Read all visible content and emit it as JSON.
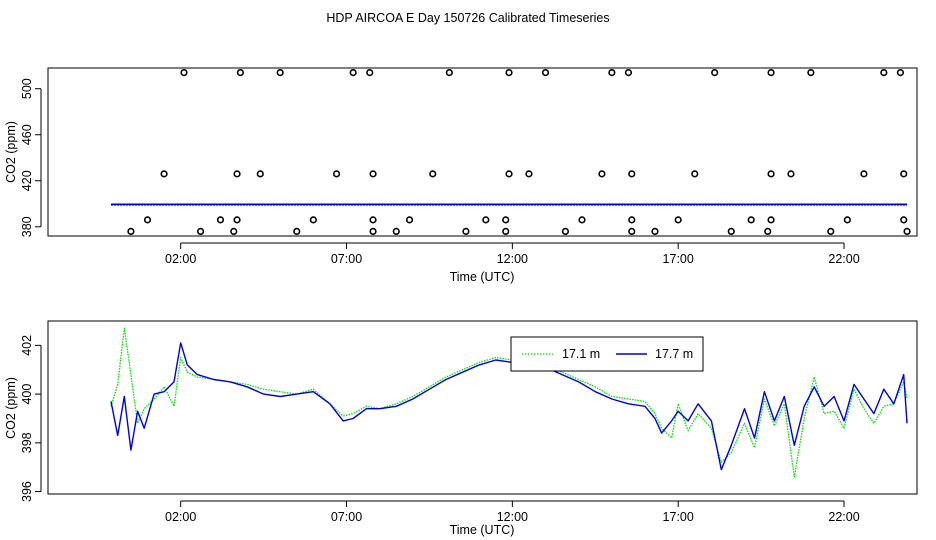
{
  "title": "HDP AIRCOA E  Day 150726  Calibrated Timeseries",
  "colors": {
    "series_17_1": "#00dd00",
    "series_17_7": "#0000dd",
    "qc_points": "#000000"
  },
  "chart_data": [
    {
      "type": "scatter",
      "xlabel": "Time (UTC)",
      "ylabel": "CO2 (ppm)",
      "xlim": [
        -2,
        24.2
      ],
      "ylim": [
        372,
        518
      ],
      "x_ticks": [
        2,
        7,
        12,
        17,
        22
      ],
      "x_tick_labels": [
        "02:00",
        "07:00",
        "12:00",
        "17:00",
        "22:00"
      ],
      "y_ticks": [
        380,
        420,
        460,
        500
      ],
      "y_tick_labels": [
        "380",
        "420",
        "460",
        "500"
      ],
      "grid": false,
      "legend": "none",
      "series": [
        {
          "values_co2_ppm": "approx 399.5 at all times (both heights overlaid near the bottom)"
        }
      ],
      "line_x_range": [
        -0.1,
        23.9
      ],
      "line_y": 399.5,
      "qc_points": [
        [
          2.1,
          514
        ],
        [
          3.8,
          514
        ],
        [
          5.0,
          514
        ],
        [
          7.2,
          514
        ],
        [
          7.7,
          514
        ],
        [
          10.1,
          514
        ],
        [
          11.9,
          514
        ],
        [
          13.0,
          514
        ],
        [
          15.0,
          514
        ],
        [
          15.5,
          514
        ],
        [
          18.1,
          514
        ],
        [
          19.8,
          514
        ],
        [
          21.0,
          514
        ],
        [
          23.2,
          514
        ],
        [
          23.7,
          514
        ],
        [
          1.5,
          426
        ],
        [
          3.7,
          426
        ],
        [
          4.4,
          426
        ],
        [
          6.7,
          426
        ],
        [
          7.8,
          426
        ],
        [
          9.6,
          426
        ],
        [
          11.9,
          426
        ],
        [
          12.5,
          426
        ],
        [
          14.7,
          426
        ],
        [
          15.6,
          426
        ],
        [
          17.5,
          426
        ],
        [
          19.8,
          426
        ],
        [
          20.4,
          426
        ],
        [
          22.6,
          426
        ],
        [
          23.8,
          426
        ],
        [
          1.0,
          386
        ],
        [
          3.2,
          386
        ],
        [
          3.7,
          386
        ],
        [
          6.0,
          386
        ],
        [
          7.8,
          386
        ],
        [
          8.9,
          386
        ],
        [
          11.2,
          386
        ],
        [
          11.8,
          386
        ],
        [
          14.1,
          386
        ],
        [
          15.6,
          386
        ],
        [
          17.0,
          386
        ],
        [
          19.2,
          386
        ],
        [
          19.8,
          386
        ],
        [
          22.1,
          386
        ],
        [
          23.8,
          386
        ],
        [
          0.5,
          376
        ],
        [
          2.6,
          376
        ],
        [
          3.6,
          376
        ],
        [
          5.5,
          376
        ],
        [
          7.8,
          376
        ],
        [
          8.5,
          376
        ],
        [
          10.6,
          376
        ],
        [
          11.8,
          376
        ],
        [
          13.6,
          376
        ],
        [
          15.6,
          376
        ],
        [
          16.3,
          376
        ],
        [
          18.6,
          376
        ],
        [
          19.7,
          376
        ],
        [
          21.6,
          376
        ],
        [
          23.9,
          376
        ]
      ]
    },
    {
      "type": "line",
      "xlabel": "Time (UTC)",
      "ylabel": "CO2 (ppm)",
      "xlim": [
        -2,
        24.2
      ],
      "ylim": [
        395.9,
        403.0
      ],
      "x_ticks": [
        2,
        7,
        12,
        17,
        22
      ],
      "x_tick_labels": [
        "02:00",
        "07:00",
        "12:00",
        "17:00",
        "22:00"
      ],
      "y_ticks": [
        396,
        398,
        400,
        402
      ],
      "y_tick_labels": [
        "396",
        "398",
        "400",
        "402"
      ],
      "grid": false,
      "legend": "top-right",
      "series": [
        {
          "name": "17.1 m",
          "color": "#00dd00",
          "dash": "dotted",
          "x": [
            -0.1,
            0.1,
            0.3,
            0.5,
            0.7,
            0.9,
            1.2,
            1.5,
            1.8,
            2.0,
            2.2,
            2.5,
            3.0,
            3.5,
            4.0,
            4.5,
            5.0,
            5.5,
            6.0,
            6.5,
            6.9,
            7.2,
            7.6,
            8.0,
            8.5,
            9.0,
            9.5,
            10.0,
            10.5,
            11.0,
            11.5,
            12.0,
            12.5,
            13.0,
            13.5,
            14.0,
            14.5,
            15.0,
            15.5,
            16.0,
            16.3,
            16.5,
            16.8,
            17.0,
            17.3,
            17.6,
            18.0,
            18.3,
            18.6,
            19.0,
            19.3,
            19.6,
            19.9,
            20.2,
            20.5,
            20.8,
            21.1,
            21.4,
            21.7,
            22.0,
            22.3,
            22.6,
            22.9,
            23.2,
            23.5,
            23.8,
            23.9
          ],
          "values": [
            399.5,
            400.4,
            402.7,
            400.8,
            398.8,
            399.4,
            399.8,
            400.3,
            399.5,
            401.5,
            400.9,
            400.7,
            400.6,
            400.5,
            400.4,
            400.2,
            400.1,
            400.0,
            400.2,
            399.6,
            399.1,
            399.2,
            399.5,
            399.4,
            399.6,
            399.9,
            400.3,
            400.7,
            401.0,
            401.3,
            401.5,
            401.4,
            401.3,
            401.2,
            400.9,
            400.6,
            400.3,
            399.9,
            399.8,
            399.7,
            399.2,
            398.6,
            398.2,
            399.6,
            398.5,
            399.2,
            398.6,
            397.2,
            397.6,
            398.8,
            397.8,
            399.8,
            398.7,
            399.6,
            396.6,
            399.0,
            400.7,
            399.2,
            399.3,
            398.6,
            400.2,
            399.4,
            398.8,
            399.5,
            399.6,
            400.5,
            399.8
          ]
        },
        {
          "name": "17.7 m",
          "color": "#0000dd",
          "dash": "solid",
          "x": [
            -0.1,
            0.1,
            0.3,
            0.5,
            0.7,
            0.9,
            1.2,
            1.5,
            1.8,
            2.0,
            2.2,
            2.5,
            3.0,
            3.5,
            4.0,
            4.5,
            5.0,
            5.5,
            6.0,
            6.5,
            6.9,
            7.2,
            7.6,
            8.0,
            8.5,
            9.0,
            9.5,
            10.0,
            10.5,
            11.0,
            11.5,
            12.0,
            12.5,
            13.0,
            13.5,
            14.0,
            14.5,
            15.0,
            15.5,
            16.0,
            16.3,
            16.5,
            16.8,
            17.0,
            17.3,
            17.6,
            18.0,
            18.3,
            18.6,
            19.0,
            19.3,
            19.6,
            19.9,
            20.2,
            20.5,
            20.8,
            21.1,
            21.4,
            21.7,
            22.0,
            22.3,
            22.6,
            22.9,
            23.2,
            23.5,
            23.8,
            23.9
          ],
          "values": [
            399.7,
            398.3,
            399.9,
            397.7,
            399.3,
            398.6,
            400.0,
            400.1,
            400.5,
            402.1,
            401.2,
            400.8,
            400.6,
            400.5,
            400.3,
            400.0,
            399.9,
            400.0,
            400.1,
            399.6,
            398.9,
            399.0,
            399.4,
            399.4,
            399.5,
            399.8,
            400.2,
            400.6,
            400.9,
            401.2,
            401.4,
            401.3,
            401.2,
            401.1,
            400.8,
            400.5,
            400.1,
            399.8,
            399.6,
            399.5,
            399.0,
            398.4,
            398.9,
            399.3,
            398.9,
            399.6,
            398.9,
            396.9,
            397.9,
            399.4,
            398.2,
            400.1,
            398.9,
            399.9,
            397.9,
            399.5,
            400.3,
            399.5,
            399.9,
            398.9,
            400.4,
            399.8,
            399.2,
            400.2,
            399.6,
            400.8,
            398.8
          ]
        }
      ]
    }
  ]
}
